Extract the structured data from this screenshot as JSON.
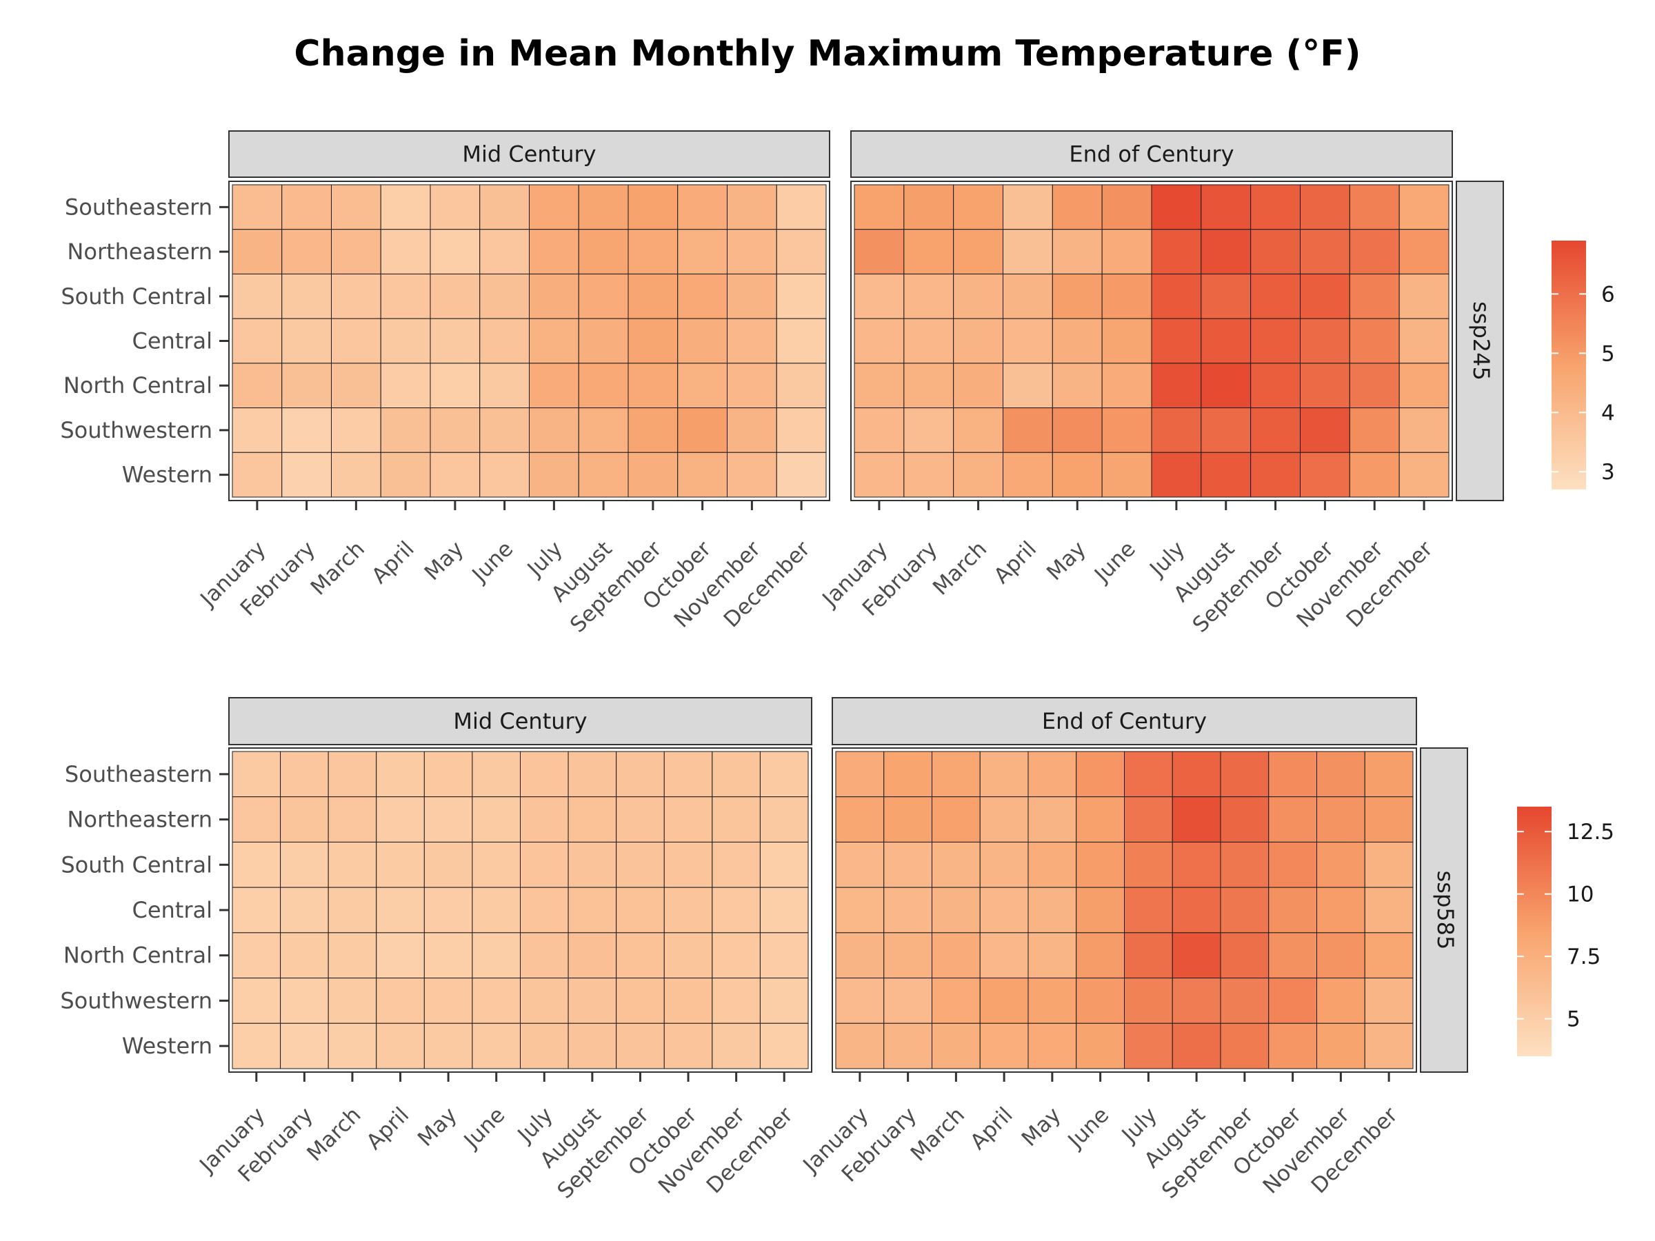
{
  "chart_data": {
    "type": "heatmap",
    "title": "Change in Mean Monthly Maximum Temperature (°F)",
    "months": [
      "January",
      "February",
      "March",
      "April",
      "May",
      "June",
      "July",
      "August",
      "September",
      "October",
      "November",
      "December"
    ],
    "regions": [
      "Southeastern",
      "Northeastern",
      "South Central",
      "Central",
      "North Central",
      "Southwestern",
      "Western"
    ],
    "panels": [
      {
        "row_label": "ssp245",
        "color_scale": {
          "min": 2.7,
          "max": 6.9,
          "low": "#fde0c1",
          "mid": "#f8a36d",
          "high": "#e5472e",
          "ticks": [
            3,
            4,
            5,
            6
          ]
        },
        "facets": [
          {
            "label": "Mid Century",
            "values": [
              [
                3.9,
                4.0,
                3.9,
                3.3,
                3.6,
                3.8,
                4.6,
                4.7,
                4.8,
                4.5,
                4.2,
                3.4
              ],
              [
                4.2,
                4.1,
                4.0,
                3.4,
                3.3,
                3.6,
                4.5,
                4.7,
                4.6,
                4.3,
                4.1,
                3.6
              ],
              [
                3.5,
                3.5,
                3.6,
                3.6,
                3.7,
                3.8,
                4.4,
                4.5,
                4.7,
                4.6,
                4.2,
                3.3
              ],
              [
                3.6,
                3.5,
                3.6,
                3.5,
                3.5,
                3.7,
                4.3,
                4.4,
                4.7,
                4.4,
                4.1,
                3.3
              ],
              [
                3.9,
                3.8,
                3.8,
                3.4,
                3.3,
                3.5,
                4.5,
                4.6,
                4.6,
                4.3,
                4.1,
                3.5
              ],
              [
                3.4,
                3.2,
                3.4,
                3.8,
                3.8,
                3.8,
                4.2,
                4.3,
                4.7,
                4.9,
                4.2,
                3.4
              ],
              [
                3.6,
                3.2,
                3.5,
                3.8,
                3.6,
                3.6,
                4.2,
                4.3,
                4.4,
                4.3,
                4.0,
                3.2
              ]
            ]
          },
          {
            "label": "End of Century",
            "values": [
              [
                4.8,
                4.9,
                4.8,
                3.8,
                5.0,
                5.2,
                6.8,
                6.6,
                6.4,
                6.2,
                5.6,
                4.6
              ],
              [
                5.2,
                4.8,
                4.8,
                3.8,
                4.2,
                4.5,
                6.5,
                6.7,
                6.3,
                6.1,
                5.9,
                5.1
              ],
              [
                4.0,
                4.1,
                4.2,
                4.2,
                4.9,
                5.0,
                6.5,
                6.2,
                6.4,
                6.4,
                5.6,
                4.2
              ],
              [
                4.1,
                4.1,
                4.2,
                4.1,
                4.4,
                4.7,
                6.5,
                6.5,
                6.4,
                6.1,
                5.6,
                4.2
              ],
              [
                4.3,
                4.3,
                4.4,
                3.8,
                4.2,
                4.5,
                6.7,
                6.8,
                6.4,
                6.1,
                5.8,
                4.6
              ],
              [
                4.1,
                3.9,
                4.3,
                5.2,
                5.3,
                5.1,
                6.2,
                6.1,
                6.4,
                6.6,
                5.3,
                4.2
              ],
              [
                4.1,
                4.1,
                4.3,
                4.6,
                4.8,
                4.7,
                6.6,
                6.5,
                6.4,
                6.0,
                5.0,
                4.3
              ]
            ]
          }
        ]
      },
      {
        "row_label": "ssp585",
        "color_scale": {
          "min": 3.5,
          "max": 13.5,
          "low": "#fde0c1",
          "mid": "#f8a36d",
          "high": "#e5472e",
          "ticks": [
            5.0,
            7.5,
            10.0,
            12.5
          ]
        },
        "facets": [
          {
            "label": "Mid Century",
            "values": [
              [
                5.3,
                5.6,
                5.6,
                5.2,
                5.5,
                5.4,
                5.8,
                5.9,
                5.9,
                5.8,
                5.7,
                5.3
              ],
              [
                5.6,
                5.7,
                5.6,
                5.1,
                5.1,
                5.2,
                5.9,
                6.0,
                5.9,
                5.8,
                5.7,
                5.4
              ],
              [
                4.9,
                5.0,
                5.2,
                5.2,
                5.4,
                5.3,
                5.8,
                5.9,
                5.9,
                5.8,
                5.6,
                4.9
              ],
              [
                4.9,
                5.0,
                5.2,
                5.0,
                5.1,
                5.2,
                5.8,
                6.0,
                6.0,
                5.8,
                5.5,
                4.9
              ],
              [
                5.1,
                5.2,
                5.2,
                4.8,
                4.9,
                5.0,
                5.9,
                6.2,
                6.0,
                5.7,
                5.5,
                5.1
              ],
              [
                4.9,
                4.9,
                5.2,
                5.5,
                5.5,
                5.5,
                5.7,
                5.9,
                6.0,
                6.0,
                5.5,
                5.0
              ],
              [
                4.9,
                4.8,
                5.0,
                5.3,
                5.3,
                5.3,
                5.7,
                5.9,
                5.9,
                5.8,
                5.4,
                4.9
              ]
            ]
          },
          {
            "label": "End of Century",
            "values": [
              [
                7.8,
                8.3,
                8.2,
                7.3,
                7.8,
                9.2,
                11.2,
                12.0,
                11.6,
                9.8,
                9.5,
                8.7
              ],
              [
                8.2,
                8.4,
                8.6,
                7.0,
                7.1,
                8.6,
                11.0,
                13.0,
                11.8,
                9.6,
                9.3,
                8.9
              ],
              [
                6.8,
                6.8,
                7.0,
                7.0,
                7.7,
                8.8,
                10.4,
                11.2,
                10.9,
                9.9,
                9.0,
                7.2
              ],
              [
                6.9,
                6.8,
                7.1,
                6.8,
                7.1,
                8.7,
                11.0,
                11.5,
                10.9,
                9.5,
                8.8,
                7.2
              ],
              [
                7.1,
                7.3,
                7.8,
                6.8,
                7.0,
                8.9,
                11.3,
                12.8,
                11.3,
                9.5,
                9.3,
                8.2
              ],
              [
                6.6,
                6.6,
                7.9,
                8.5,
                8.3,
                9.0,
                10.3,
                10.6,
                10.5,
                10.2,
                8.6,
                7.0
              ],
              [
                7.0,
                7.0,
                7.4,
                7.6,
                7.9,
                8.4,
                10.6,
                11.3,
                10.7,
                9.2,
                8.4,
                7.0
              ]
            ]
          }
        ]
      }
    ]
  }
}
